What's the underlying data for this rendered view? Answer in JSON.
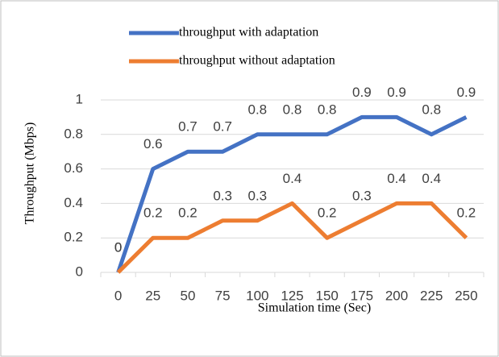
{
  "chart_data": {
    "type": "line",
    "categories": [
      "0",
      "25",
      "50",
      "75",
      "100",
      "125",
      "150",
      "175",
      "200",
      "225",
      "250"
    ],
    "series": [
      {
        "name": "throughput with adaptation",
        "color": "#4472c4",
        "values": [
          0,
          0.6,
          0.7,
          0.7,
          0.8,
          0.8,
          0.8,
          0.9,
          0.9,
          0.8,
          0.9
        ]
      },
      {
        "name": "throughput without adaptation",
        "color": "#ed7d31",
        "values": [
          0,
          0.2,
          0.2,
          0.3,
          0.3,
          0.4,
          0.2,
          0.3,
          0.4,
          0.4,
          0.2
        ]
      }
    ],
    "xlabel": "Simulation time (Sec)",
    "ylabel": "Throughput (Mbps)",
    "ylim": [
      0,
      1
    ],
    "yticks": [
      0,
      0.2,
      0.4,
      0.6,
      0.8,
      1
    ],
    "grid": true,
    "legend": "top"
  }
}
